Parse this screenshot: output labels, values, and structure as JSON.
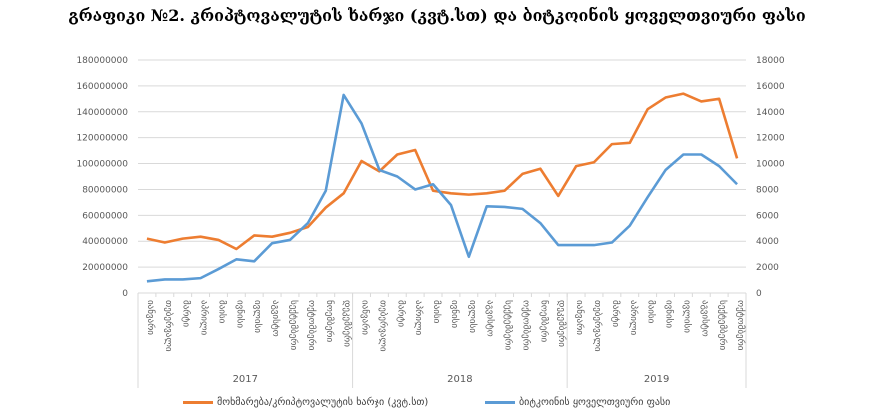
{
  "title": "გრაფიკი №2. კრიპტოვალუტის ხარჯი (კვტ.სთ) და ბიტკოინის ყოველთვიური ფასი",
  "chart_data": {
    "type": "line",
    "title": "გრაფიკი №2. კრიპტოვალუტის ხარჯი (კვტ.სთ) და ბიტკოინის ყოველთვიური ფასი",
    "months": [
      "იანვარი",
      "თებერვალი",
      "მარტი",
      "აპრილი",
      "მაისი",
      "ივნისი",
      "ივლისი",
      "აგვისტო",
      "სექტემბერი",
      "ოქტომბერი",
      "ნოემბერი",
      "დეკემბერი"
    ],
    "years": [
      {
        "label": "2017",
        "count": 12
      },
      {
        "label": "2018",
        "count": 12
      },
      {
        "label": "2019",
        "count": 10
      }
    ],
    "left_axis": {
      "min": 0,
      "max": 180000000,
      "step": 20000000
    },
    "right_axis": {
      "min": 0,
      "max": 18000,
      "step": 2000
    },
    "grid": true,
    "legend_position": "bottom",
    "series": [
      {
        "name": "მოხმარება/კრიპტოვალუტის ხარჯი (კვტ.სთ)",
        "axis": "left",
        "color": "#ED7D31",
        "values": [
          42000000,
          39000000,
          42000000,
          43500000,
          41000000,
          34000000,
          44500000,
          43500000,
          46500000,
          51000000,
          66000000,
          77000000,
          102000000,
          94000000,
          107000000,
          110500000,
          79000000,
          77000000,
          76000000,
          77000000,
          79000000,
          92000000,
          96000000,
          75000000,
          98000000,
          101000000,
          115000000,
          116000000,
          142000000,
          151000000,
          154000000,
          148000000,
          150000000,
          104000000
        ]
      },
      {
        "name": "ბიტკოინის ყოველთვიური ფასი",
        "axis": "right",
        "color": "#5B9BD5",
        "values": [
          900,
          1050,
          1050,
          1150,
          1850,
          2600,
          2450,
          3850,
          4100,
          5400,
          7900,
          15300,
          13100,
          9500,
          9000,
          8000,
          8400,
          6800,
          2800,
          6700,
          6650,
          6500,
          5400,
          3700,
          3700,
          3700,
          3900,
          5200,
          7400,
          9500,
          10700,
          10700,
          9800,
          8400
        ]
      }
    ]
  }
}
